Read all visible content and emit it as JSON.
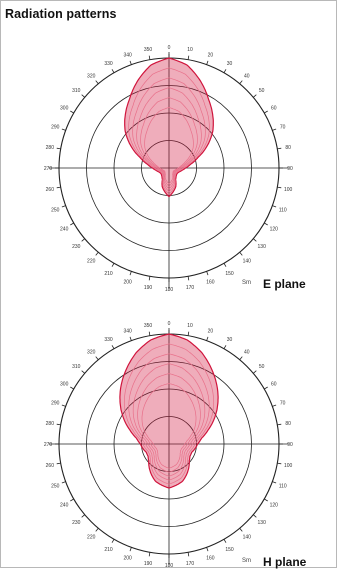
{
  "page": {
    "title": "Radiation patterns"
  },
  "colors": {
    "pattern": "#d0143c",
    "pattern_light": "#e8708a",
    "grid": "#222222"
  },
  "chart_data": [
    {
      "type": "polar",
      "plane_label": "E plane",
      "plane_tag": "Sm",
      "angle_ticks_deg": [
        0,
        10,
        20,
        30,
        40,
        50,
        60,
        70,
        80,
        90,
        100,
        110,
        120,
        130,
        140,
        150,
        160,
        170,
        180,
        190,
        200,
        210,
        220,
        230,
        240,
        250,
        260,
        270,
        280,
        290,
        300,
        310,
        320,
        330,
        340,
        350
      ],
      "radial_rings": 4,
      "grid": true,
      "pattern_deg": [
        0,
        10,
        20,
        30,
        40,
        50,
        60,
        70,
        80,
        90,
        100,
        110,
        120,
        130,
        140,
        150,
        160,
        170,
        180,
        190,
        200,
        210,
        220,
        230,
        240,
        250,
        260,
        270,
        280,
        290,
        300,
        310,
        320,
        330,
        340,
        350
      ],
      "pattern_r": [
        1.0,
        0.95,
        0.84,
        0.72,
        0.62,
        0.52,
        0.4,
        0.28,
        0.2,
        0.15,
        0.12,
        0.1,
        0.09,
        0.09,
        0.1,
        0.12,
        0.18,
        0.22,
        0.26,
        0.22,
        0.18,
        0.12,
        0.1,
        0.09,
        0.09,
        0.1,
        0.12,
        0.15,
        0.2,
        0.28,
        0.4,
        0.52,
        0.62,
        0.72,
        0.84,
        0.95
      ]
    },
    {
      "type": "polar",
      "plane_label": "H plane",
      "plane_tag": "Sm",
      "angle_ticks_deg": [
        0,
        10,
        20,
        30,
        40,
        50,
        60,
        70,
        80,
        90,
        100,
        110,
        120,
        130,
        140,
        150,
        160,
        170,
        180,
        190,
        200,
        210,
        220,
        230,
        240,
        250,
        260,
        270,
        280,
        290,
        300,
        310,
        320,
        330,
        340,
        350
      ],
      "radial_rings": 4,
      "grid": true,
      "pattern_deg": [
        0,
        10,
        20,
        30,
        40,
        50,
        60,
        70,
        80,
        90,
        100,
        110,
        120,
        130,
        140,
        150,
        160,
        170,
        180,
        190,
        200,
        210,
        220,
        230,
        240,
        250,
        260,
        270,
        280,
        290,
        300,
        310,
        320,
        330,
        340,
        350
      ],
      "pattern_r": [
        1.0,
        0.96,
        0.88,
        0.78,
        0.68,
        0.58,
        0.48,
        0.38,
        0.3,
        0.26,
        0.24,
        0.22,
        0.22,
        0.24,
        0.28,
        0.32,
        0.36,
        0.38,
        0.4,
        0.38,
        0.36,
        0.32,
        0.28,
        0.24,
        0.22,
        0.22,
        0.24,
        0.26,
        0.3,
        0.38,
        0.48,
        0.58,
        0.68,
        0.78,
        0.88,
        0.96
      ]
    }
  ]
}
